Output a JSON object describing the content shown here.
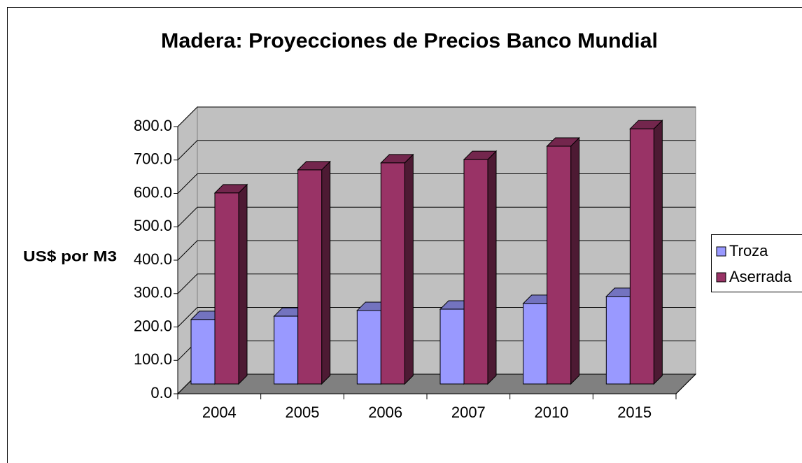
{
  "chart_data": {
    "type": "bar3d",
    "title": "Madera: Proyecciones de Precios Banco Mundial",
    "y_label": "US$ por M3",
    "categories": [
      "2004",
      "2005",
      "2006",
      "2007",
      "2010",
      "2015"
    ],
    "series": [
      {
        "name": "Troza",
        "color": "#9999ff",
        "values": [
          193,
          203,
          220,
          224,
          241,
          262
        ]
      },
      {
        "name": "Aserrada",
        "color": "#993366",
        "values": [
          572,
          641,
          662,
          672,
          712,
          764
        ]
      }
    ],
    "ylim": [
      0,
      800
    ],
    "yticks": [
      {
        "value": 0,
        "label": "0.0"
      },
      {
        "value": 100,
        "label": "100.0"
      },
      {
        "value": 200,
        "label": "200.0"
      },
      {
        "value": 300,
        "label": "300.0"
      },
      {
        "value": 400,
        "label": "400.0"
      },
      {
        "value": 500,
        "label": "500.0"
      },
      {
        "value": 600,
        "label": "600.0"
      },
      {
        "value": 700,
        "label": "700.0"
      },
      {
        "value": 800,
        "label": "800.0"
      }
    ],
    "grid": true,
    "legend": "right"
  }
}
